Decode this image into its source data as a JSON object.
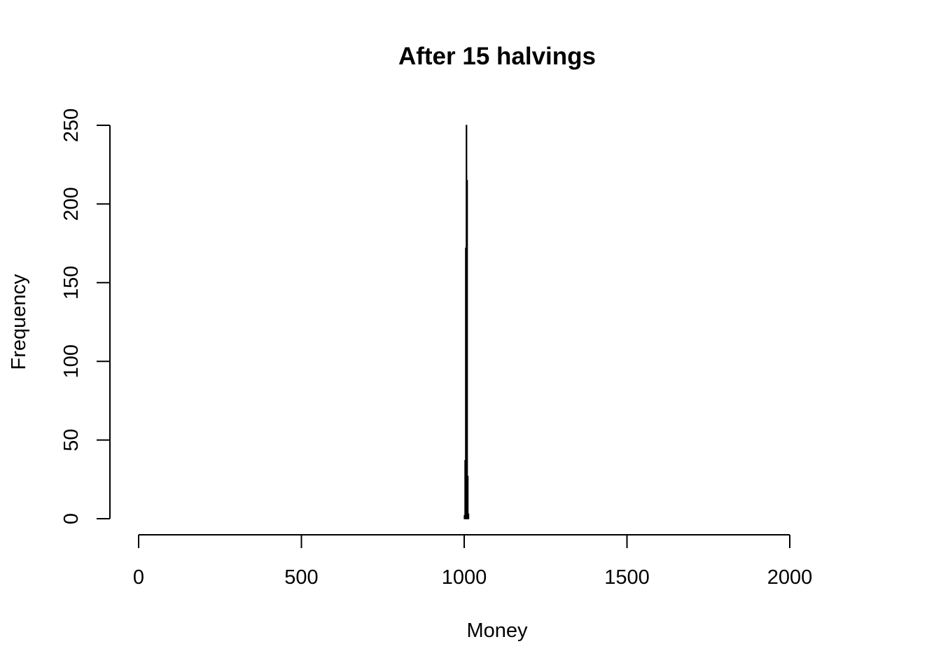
{
  "chart_data": {
    "type": "bar",
    "title": "After 15 halvings",
    "xlabel": "Money",
    "ylabel": "Frequency",
    "xlim": [
      0,
      2000
    ],
    "ylim": [
      0,
      250
    ],
    "x_ticks": [
      0,
      500,
      1000,
      1500,
      2000
    ],
    "y_ticks": [
      0,
      50,
      100,
      150,
      200,
      250
    ],
    "x_tick_labels": [
      "0",
      "500",
      "1000",
      "1500",
      "2000"
    ],
    "y_tick_labels": [
      "0",
      "50",
      "100",
      "150",
      "200",
      "250"
    ],
    "grid": false,
    "bar_fill": "#ffffff",
    "bar_stroke": "#000000",
    "bins": [
      {
        "x0": 1000,
        "x1": 1002,
        "value": 2
      },
      {
        "x0": 1002,
        "x1": 1004,
        "value": 37
      },
      {
        "x0": 1004,
        "x1": 1006,
        "value": 172
      },
      {
        "x0": 1006,
        "x1": 1008,
        "value": 250
      },
      {
        "x0": 1008,
        "x1": 1010,
        "value": 215
      },
      {
        "x0": 1010,
        "x1": 1012,
        "value": 27
      },
      {
        "x0": 1012,
        "x1": 1014,
        "value": 3
      }
    ]
  }
}
